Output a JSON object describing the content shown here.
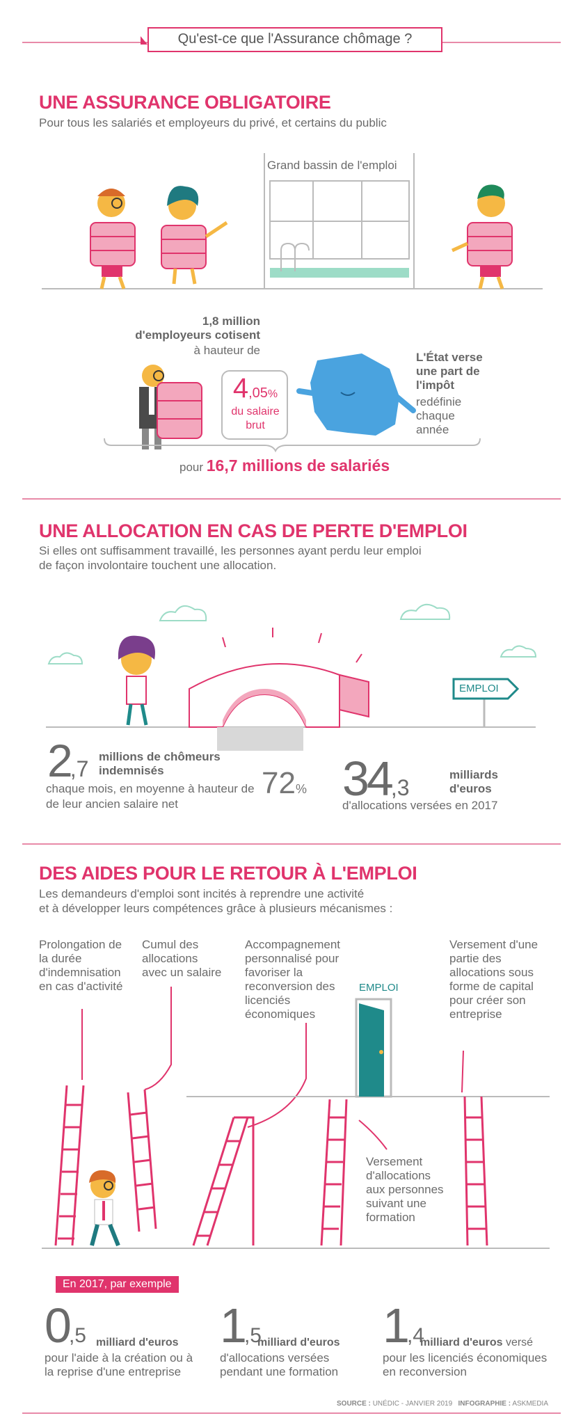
{
  "header": {
    "title": "Qu'est-ce que l'Assurance chômage ?"
  },
  "section1": {
    "title": "UNE ASSURANCE OBLIGATOIRE",
    "subtitle": "Pour tous les salariés et employeurs du privé, et certains du public",
    "pool_label": "Grand bassin de l'emploi",
    "employers_bold": "1,8 million d'employeurs cotisent",
    "employers_rest": "à hauteur de",
    "rate_int": "4",
    "rate_dec": ",05",
    "rate_unit": "%",
    "rate_caption": "du salaire brut",
    "state_bold": "L'État verse une part de l'impôt",
    "state_rest": "redéfinie chaque année",
    "for_prefix": "pour",
    "for_value": "16,7 millions de salariés"
  },
  "section2": {
    "title": "UNE ALLOCATION EN CAS DE PERTE D'EMPLOI",
    "subtitle_l1": "Si elles ont suffisamment travaillé, les personnes ayant perdu leur emploi",
    "subtitle_l2": "de façon involontaire touchent une allocation.",
    "sign": "EMPLOI",
    "stat1_int": "2",
    "stat1_dec": ",7",
    "stat1_bold": "millions de chômeurs indemnisés",
    "stat1_text": "chaque mois, en moyenne à hauteur de",
    "stat1_text2": "de leur ancien salaire net",
    "stat1_pct": "72",
    "stat1_pct_unit": "%",
    "stat2_int": "34",
    "stat2_dec": ",3",
    "stat2_bold": "milliards d'euros",
    "stat2_text": "d'allocations versées en 2017"
  },
  "section3": {
    "title": "DES AIDES POUR LE RETOUR À L'EMPLOI",
    "subtitle_l1": "Les demandeurs d'emploi sont incités à reprendre une activité",
    "subtitle_l2": "et à développer leurs compétences grâce à plusieurs mécanismes :",
    "label1": "Prolongation de la durée d'indemnisation en cas d'activité",
    "label2": "Cumul des allocations avec un salaire",
    "label3": "Accompagnement personnalisé pour favoriser la reconversion des licenciés économiques",
    "label4": "Versement d'une partie des allocations sous forme de capital pour créer son entreprise",
    "label5": "Versement d'allocations aux personnes suivant une formation",
    "door_label": "EMPLOI",
    "example_tag": "En 2017, par exemple",
    "ex1_int": "0",
    "ex1_dec": ",5",
    "ex1_bold": "milliard d'euros",
    "ex1_text": "pour l'aide à la création ou à la reprise d'une entreprise",
    "ex2_int": "1",
    "ex2_dec": ",5",
    "ex2_bold": "milliard d'euros",
    "ex2_text": "d'allocations versées pendant une formation",
    "ex3_int": "1",
    "ex3_dec": ",4",
    "ex3_bold": "milliard d'euros",
    "ex3_rest": "versé",
    "ex3_text": "pour les licenciés économiques en reconversion"
  },
  "footer": {
    "source_label": "SOURCE :",
    "source": "UNÉDIC - JANVIER 2019",
    "infographie_label": "INFOGRAPHIE :",
    "infographie": "ASKMEDIA"
  },
  "colors": {
    "accent": "#e0346c",
    "text": "#6b6b6b",
    "light_pink": "#f3a7bd",
    "blue": "#4aa3df",
    "teal": "#1f8a8a",
    "mint": "#9ddcc7"
  }
}
